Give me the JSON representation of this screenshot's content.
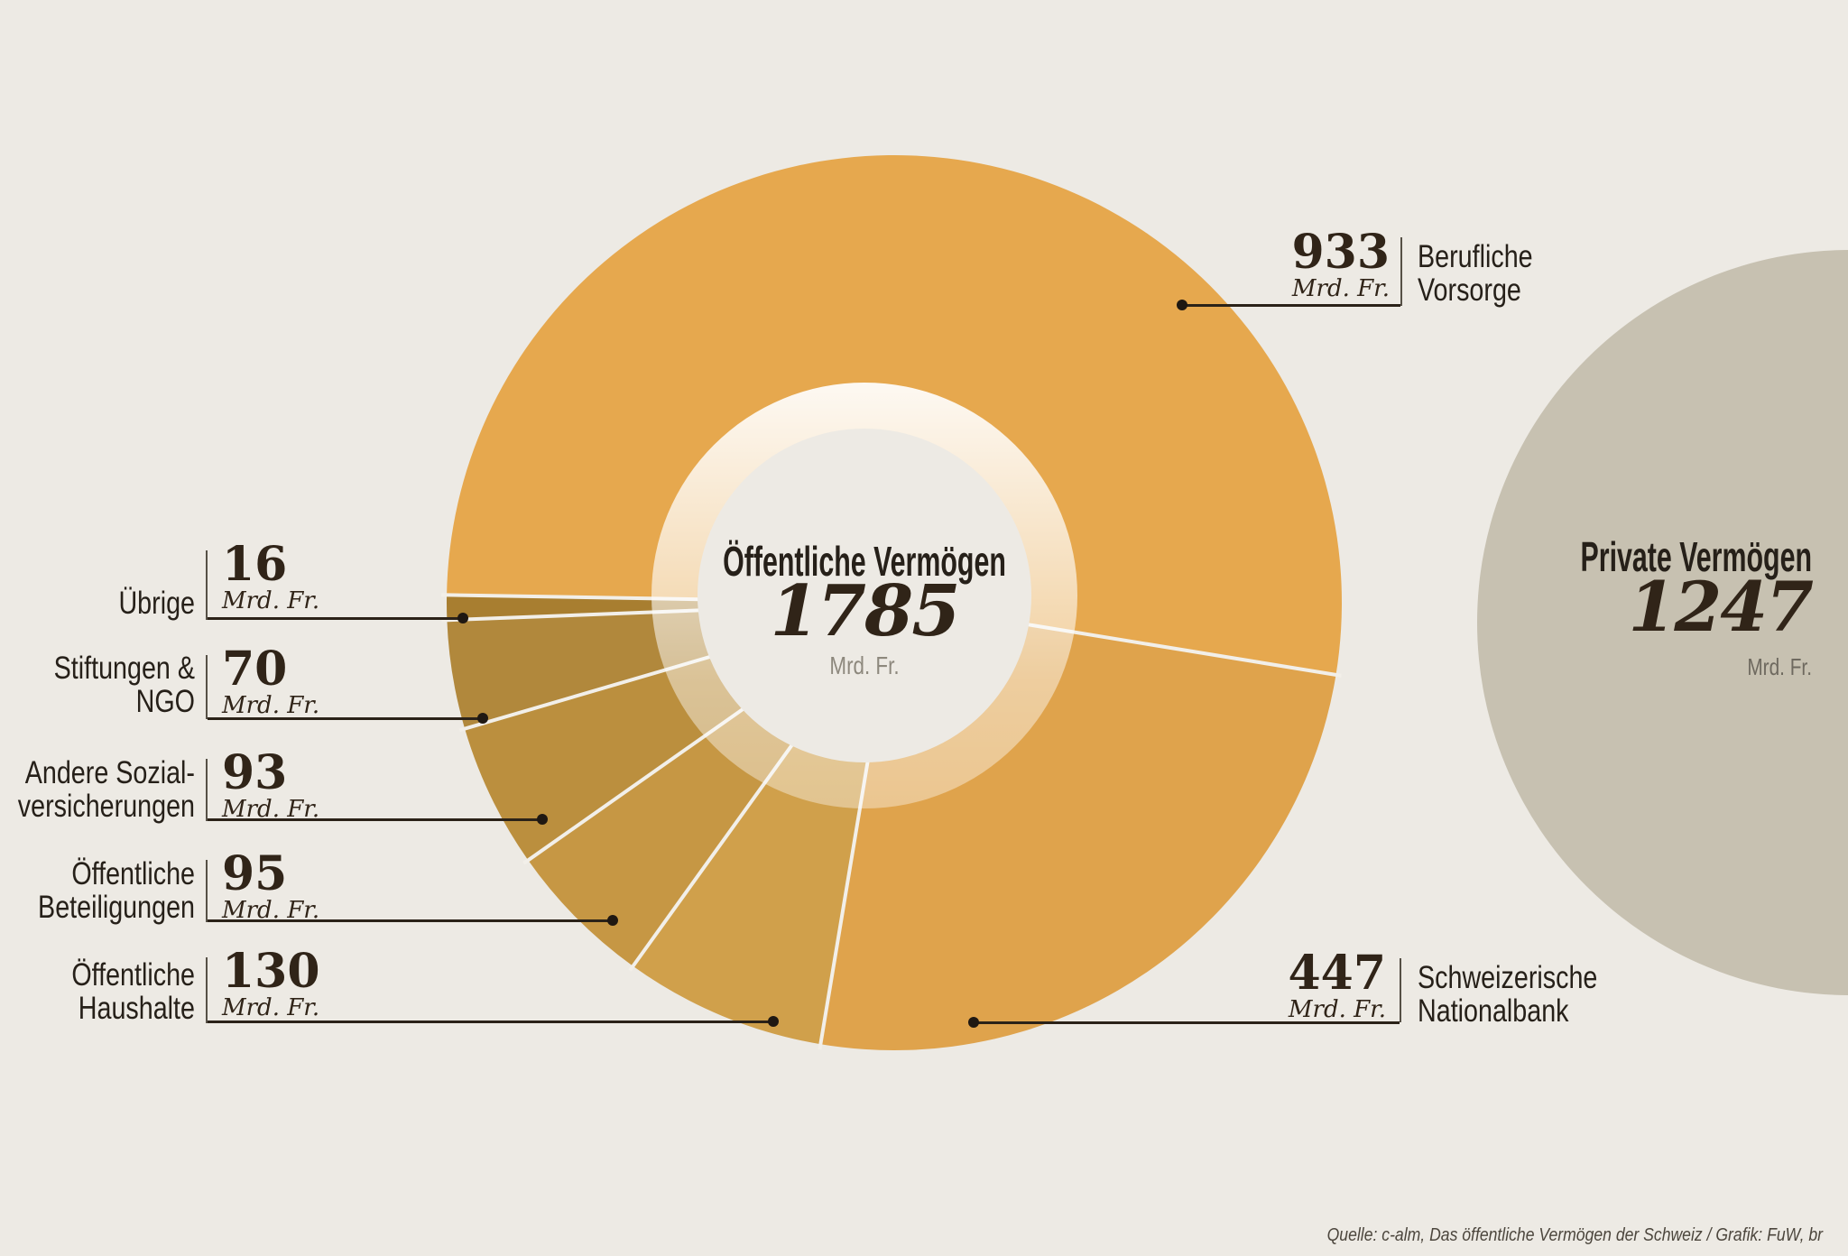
{
  "chart_data": {
    "type": "pie",
    "title": "Öffentliche Vermögen",
    "total": "1785",
    "unit": "Mrd. Fr.",
    "segments": [
      {
        "label": "Berufliche Vorsorge",
        "display_lines": [
          "Berufliche",
          "Vorsorge"
        ],
        "value": 933,
        "color": "#e6a84e"
      },
      {
        "label": "Schweizerische Nationalbank",
        "display_lines": [
          "Schweizerische",
          "Nationalbank"
        ],
        "value": 447,
        "color": "#dfa34c"
      },
      {
        "label": "Öffentliche Haushalte",
        "display_lines": [
          "Öffentliche",
          "Haushalte"
        ],
        "value": 130,
        "color": "#d0a04b"
      },
      {
        "label": "Öffentliche Beteiligungen",
        "display_lines": [
          "Öffentliche",
          "Beteiligungen"
        ],
        "value": 95,
        "color": "#c69744"
      },
      {
        "label": "Andere Sozialversicherungen",
        "display_lines": [
          "Andere Sozial-",
          "versicherungen"
        ],
        "value": 93,
        "color": "#bb8f3e"
      },
      {
        "label": "Stiftungen & NGO",
        "display_lines": [
          "Stiftungen &",
          "NGO"
        ],
        "value": 70,
        "color": "#b1883c"
      },
      {
        "label": "Übrige",
        "display_lines": [
          "Übrige"
        ],
        "value": 16,
        "color": "#a87e30"
      }
    ],
    "comparison": {
      "label": "Private Vermögen",
      "value": "1247",
      "unit": "Mrd. Fr.",
      "color": "#c7c1b1"
    },
    "background_color": "#edeae4",
    "separator_color": "#f2efe9",
    "legend_position": "around",
    "grid": "off"
  },
  "source": "Quelle: c-alm, Das öffentliche Vermögen der Schweiz / Grafik: FuW, br"
}
